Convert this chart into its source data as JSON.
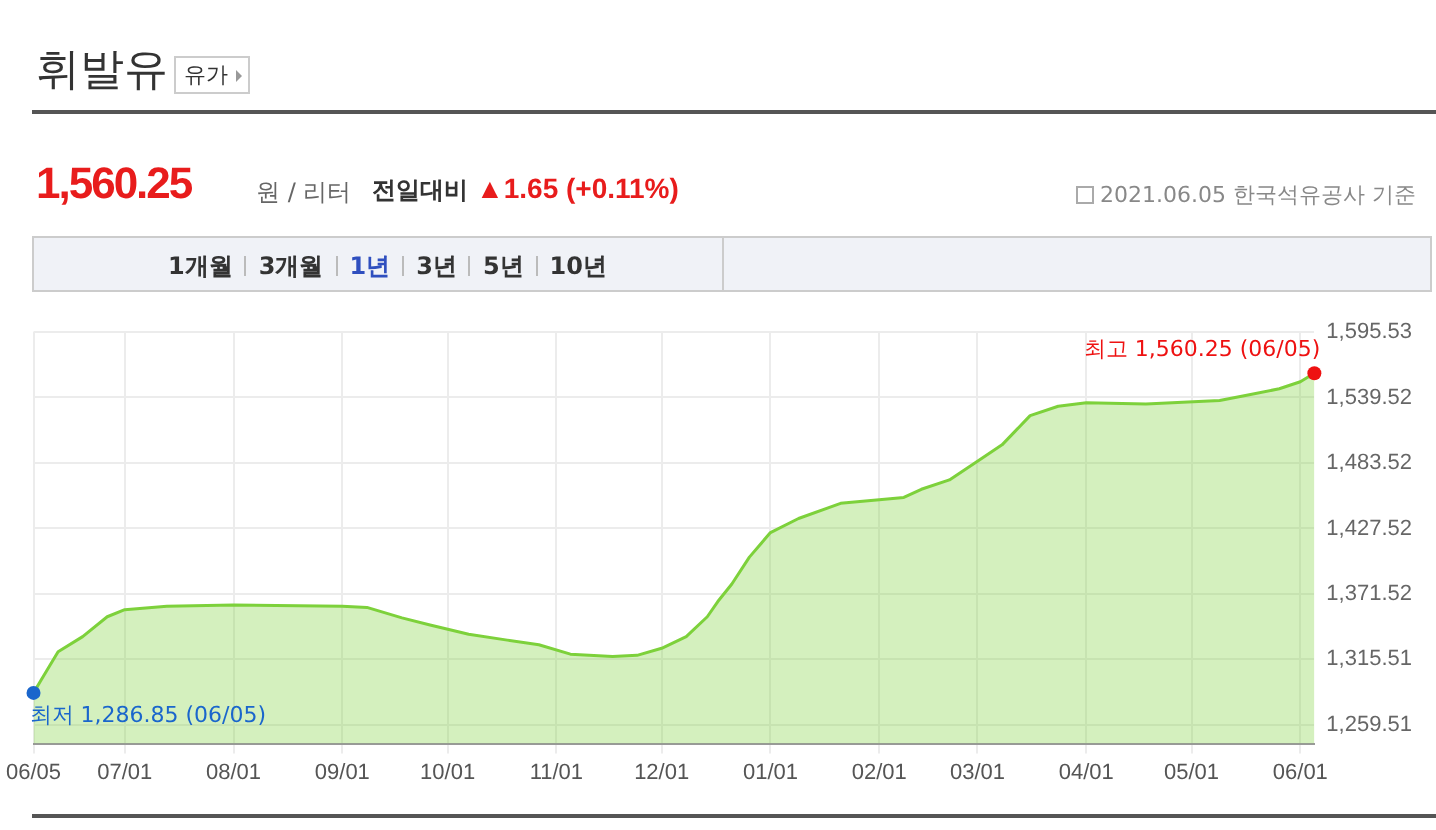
{
  "chart_data": {
    "type": "area",
    "title": "휘발유",
    "annotations": [
      "유가",
      "1,560.25",
      "원 / 리터",
      "전일대비",
      "▲1.65 (+0.11%)",
      "2021.06.05 한국석유공사 기준",
      "1개월",
      "3개월",
      "1년",
      "3년",
      "5년",
      "10년",
      {
        "text": "최고 1,560.25 (06/05)",
        "x": "2021-06-05",
        "y": 1560.25
      },
      {
        "text": "최저 1,286.85 (06/05)",
        "x": "2020-06-05",
        "y": 1286.85
      }
    ],
    "x": [
      "2020-06-05",
      "2020-06-07",
      "2020-06-12",
      "2020-06-19",
      "2020-06-26",
      "2020-07-01",
      "2020-07-13",
      "2020-08-01",
      "2020-09-01",
      "2020-09-08",
      "2020-09-18",
      "2020-09-26",
      "2020-10-07",
      "2020-10-18",
      "2020-10-27",
      "2020-11-05",
      "2020-11-17",
      "2020-11-24",
      "2020-12-01",
      "2020-12-08",
      "2020-12-14",
      "2020-12-17",
      "2020-12-21",
      "2020-12-26",
      "2021-01-01",
      "2021-01-09",
      "2021-01-21",
      "2021-02-01",
      "2021-02-08",
      "2021-02-13",
      "2021-02-21",
      "2021-03-01",
      "2021-03-08",
      "2021-03-16",
      "2021-03-24",
      "2021-04-01",
      "2021-04-18",
      "2021-05-09",
      "2021-05-16",
      "2021-05-26",
      "2021-06-01",
      "2021-06-05"
    ],
    "series": [
      {
        "color": "#7dd13b",
        "values": [
          1286.85,
          1297,
          1322,
          1335,
          1352,
          1358,
          1361,
          1362,
          1361,
          1360,
          1351,
          1345,
          1337,
          1332,
          1328,
          1320,
          1318,
          1319,
          1325,
          1335,
          1352,
          1365,
          1380,
          1403,
          1424,
          1436,
          1449,
          1452,
          1454,
          1461,
          1469,
          1485,
          1499,
          1524,
          1532,
          1535,
          1534,
          1537,
          1541,
          1547,
          1553,
          1560.25
        ]
      }
    ],
    "xlim": [
      "2020-06-05",
      "2021-06-05"
    ],
    "xticks": [
      {
        "value": "2020-06-05",
        "label": "06/05"
      },
      {
        "value": "2020-07-01",
        "label": "07/01"
      },
      {
        "value": "2020-08-01",
        "label": "08/01"
      },
      {
        "value": "2020-09-01",
        "label": "09/01"
      },
      {
        "value": "2020-10-01",
        "label": "10/01"
      },
      {
        "value": "2020-11-01",
        "label": "11/01"
      },
      {
        "value": "2020-12-01",
        "label": "12/01"
      },
      {
        "value": "2021-01-01",
        "label": "01/01"
      },
      {
        "value": "2021-02-01",
        "label": "02/01"
      },
      {
        "value": "2021-03-01",
        "label": "03/01"
      },
      {
        "value": "2021-04-01",
        "label": "04/01"
      },
      {
        "value": "2021-05-01",
        "label": "05/01"
      },
      {
        "value": "2021-06-01",
        "label": "06/01"
      }
    ],
    "ylim": [
      1243.5,
      1595.53
    ],
    "yticks": [
      {
        "value": 1259.51,
        "label": "1,259.51"
      },
      {
        "value": 1315.51,
        "label": "1,315.51"
      },
      {
        "value": 1371.52,
        "label": "1,371.52"
      },
      {
        "value": 1427.52,
        "label": "1,427.52"
      },
      {
        "value": 1483.52,
        "label": "1,483.52"
      },
      {
        "value": 1539.52,
        "label": "1,539.52"
      },
      {
        "value": 1595.53,
        "label": "1,595.53"
      }
    ],
    "grid": true,
    "marker": "none",
    "line_style": "solid"
  }
}
